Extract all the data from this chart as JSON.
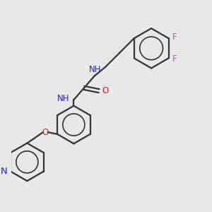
{
  "bg_color": "#e8e8e8",
  "bond_color": "#333333",
  "N_color": "#2222cc",
  "O_color": "#cc2222",
  "F_color": "#cc44aa",
  "figsize": [
    3.0,
    3.0
  ],
  "dpi": 100,
  "xlim": [
    0,
    10
  ],
  "ylim": [
    0,
    10
  ]
}
